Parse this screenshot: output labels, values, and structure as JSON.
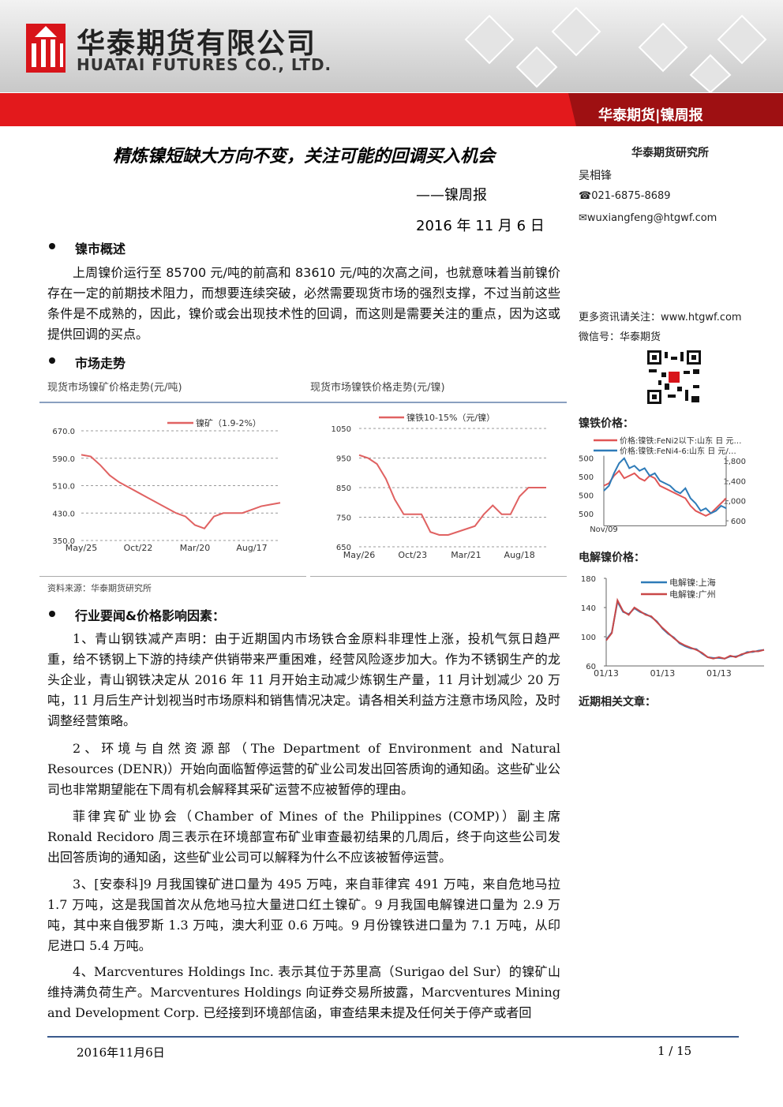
{
  "header": {
    "company_cn": "华泰期货有限公司",
    "company_en": "HUATAI FUTURES CO., LTD.",
    "banner": "华泰期货|镍周报"
  },
  "title": "精炼镍短缺大方向不变，关注可能的回调买入机会",
  "subtitle": "——镍周报",
  "date": "2016 年 11 月 6 日",
  "overview": {
    "heading": "镍市概述",
    "text": "上周镍价运行至 85700 元/吨的前高和 83610 元/吨的次高之间，也就意味着当前镍价存在一定的前期技术阻力，而想要连续突破，必然需要现货市场的强烈支撑，不过当前这些条件是不成熟的，因此，镍价或会出现技术性的回调，而这则是需要关注的重点，因为这或提供回调的买点。"
  },
  "market": {
    "heading": "市场走势",
    "source": "资料来源：华泰期货研究所"
  },
  "news": {
    "heading": "行业要闻&价格影响因素：",
    "paragraphs": [
      "1、青山钢铁减产声明：由于近期国内市场铁合金原料非理性上涨，投机气氛日趋严重，给不锈钢上下游的持续产供销带来严重困难，经营风险逐步加大。作为不锈钢生产的龙头企业，青山钢铁决定从 2016 年 11 月开始主动减少炼钢生产量，11 月计划减少 20 万吨，11 月后生产计划视当时市场原料和销售情况决定。请各相关利益方注意市场风险，及时调整经营策略。",
      "2、环境与自然资源部（The Department of Environment and Natural Resources (DENR)）开始向面临暂停运营的矿业公司发出回答质询的通知函。这些矿业公司也非常期望能在下周有机会解释其采矿运营不应被暂停的理由。",
      "菲律宾矿业协会（Chamber of Mines of the Philippines (COMP)）副主席 Ronald Recidoro 周三表示在环境部宣布矿业审查最初结果的几周后，终于向这些公司发出回答质询的通知函，这些矿业公司可以解释为什么不应该被暂停运营。",
      "3、[安泰科]9 月我国镍矿进口量为 495 万吨，来自菲律宾 491 万吨，来自危地马拉 1.7 万吨，这是我国首次从危地马拉大量进口红土镍矿。9 月我国电解镍进口量为 2.9 万吨，其中来自俄罗斯 1.3 万吨，澳大利亚 0.6 万吨。9 月份镍铁进口量为 7.1 万吨，从印尼进口 5.4 万吨。",
      "4、Marcventures Holdings Inc. 表示其位于苏里高（Surigao del Sur）的镍矿山维持满负荷生产。Marcventures Holdings 向证券交易所披露，Marcventures Mining and Development Corp. 已经接到环境部信函，审查结果未提及任何关于停产或者回"
    ]
  },
  "sidebar": {
    "institute": "华泰期货研究所",
    "analyst": "吴相锋",
    "phone": "☎021-6875-8689",
    "email": "✉wuxiangfeng@htgwf.com",
    "more": "更多资讯请关注：www.htgwf.com",
    "wechat": "微信号：华泰期货",
    "related": "近期相关文章："
  },
  "footer": {
    "date": "2016年11月6日",
    "page": "1 / 15"
  },
  "chart_data": [
    {
      "type": "line",
      "title": "现货市场镍矿价格走势(元/吨)",
      "grid": true,
      "categories": [
        "May/25",
        null,
        null,
        null,
        null,
        null,
        "Oct/22",
        null,
        null,
        null,
        null,
        null,
        "Mar/20",
        null,
        null,
        null,
        null,
        null,
        "Aug/17",
        null,
        null,
        null
      ],
      "series": [
        {
          "name": "镍矿（1.9-2%）",
          "color": "#e06262",
          "values": [
            600,
            595,
            570,
            540,
            520,
            505,
            490,
            475,
            460,
            445,
            430,
            420,
            395,
            385,
            420,
            430,
            430,
            430,
            440,
            450,
            455,
            460
          ]
        }
      ],
      "ylim": [
        350,
        670
      ],
      "yticks": [
        {
          "value": 350,
          "label": "350.0"
        },
        {
          "value": 430,
          "label": "430.0"
        },
        {
          "value": 510,
          "label": "510.0"
        },
        {
          "value": 590,
          "label": "590.0"
        },
        {
          "value": 670,
          "label": "670.0"
        }
      ]
    },
    {
      "type": "line",
      "title": "现货市场镍铁价格走势(元/镍)",
      "grid": true,
      "categories": [
        "May/26",
        null,
        null,
        null,
        null,
        null,
        "Oct/23",
        null,
        null,
        null,
        null,
        null,
        "Mar/21",
        null,
        null,
        null,
        null,
        null,
        "Aug/18",
        null,
        null,
        null
      ],
      "series": [
        {
          "name": "镍铁10-15%（元/镍）",
          "color": "#e06262",
          "values": [
            960,
            950,
            930,
            880,
            810,
            760,
            760,
            760,
            700,
            690,
            690,
            700,
            710,
            720,
            760,
            790,
            760,
            760,
            820,
            850,
            850,
            850
          ]
        }
      ],
      "ylim": [
        650,
        1050
      ],
      "yticks": [
        650,
        750,
        850,
        950,
        1050
      ]
    },
    {
      "type": "line",
      "title": "镍铁价格：",
      "grid": false,
      "categories": [
        "Nov/09",
        null,
        null,
        null,
        null,
        null,
        null,
        null,
        null,
        null,
        null,
        null,
        null,
        null,
        null,
        null,
        null,
        null,
        null,
        null,
        null,
        null,
        null,
        null,
        null
      ],
      "series": [
        {
          "name": "价格:镍铁:FeNi2以下:山东 日 元…",
          "color": "#e05555",
          "axis": "y2",
          "values": [
            1300,
            1350,
            1500,
            1600,
            1450,
            1500,
            1550,
            1450,
            1400,
            1500,
            1450,
            1300,
            1250,
            1200,
            1150,
            1100,
            1050,
            900,
            800,
            750,
            700,
            750,
            850,
            950,
            1050
          ]
        },
        {
          "name": "价格:镍铁:FeNi4-6:山东 日 元/…",
          "color": "#2e7bb8",
          "axis": "y2",
          "values": [
            1200,
            1300,
            1550,
            1750,
            1850,
            1650,
            1700,
            1600,
            1650,
            1500,
            1550,
            1400,
            1350,
            1300,
            1200,
            1150,
            1250,
            1050,
            950,
            800,
            850,
            750,
            800,
            900,
            850
          ]
        }
      ],
      "left_tick_labels": [
        "500",
        "500",
        "500",
        "500"
      ],
      "y2lim": [
        500,
        1900
      ],
      "y2ticks": [
        600,
        {
          "value": 1000,
          "label": "1,000"
        },
        {
          "value": 1400,
          "label": "1,400"
        },
        {
          "value": 1800,
          "label": "1,800"
        }
      ]
    },
    {
      "type": "line",
      "title": "电解镍价格：",
      "grid": false,
      "categories": [
        "01/13",
        null,
        null,
        null,
        null,
        null,
        null,
        null,
        null,
        null,
        "01/13",
        null,
        null,
        null,
        null,
        null,
        null,
        null,
        null,
        null,
        "01/13",
        null,
        null,
        null,
        null,
        null,
        null,
        null,
        null
      ],
      "series": [
        {
          "name": "电解镍:上海",
          "color": "#2e7bb8",
          "values": [
            96,
            106,
            148,
            134,
            131,
            139,
            134,
            131,
            127,
            121,
            111,
            104,
            99,
            91,
            87,
            84,
            83,
            77,
            72,
            71,
            71,
            70,
            73,
            73,
            75,
            79,
            79,
            81,
            82
          ]
        },
        {
          "name": "电解镍:广州",
          "color": "#c94848",
          "values": [
            95,
            105,
            150,
            135,
            130,
            140,
            135,
            130,
            128,
            120,
            112,
            105,
            98,
            92,
            88,
            85,
            82,
            78,
            72,
            70,
            72,
            70,
            74,
            72,
            76,
            78,
            80,
            80,
            82
          ]
        }
      ],
      "ylim": [
        60,
        180
      ],
      "yticks": [
        60,
        100,
        140,
        180
      ]
    }
  ]
}
